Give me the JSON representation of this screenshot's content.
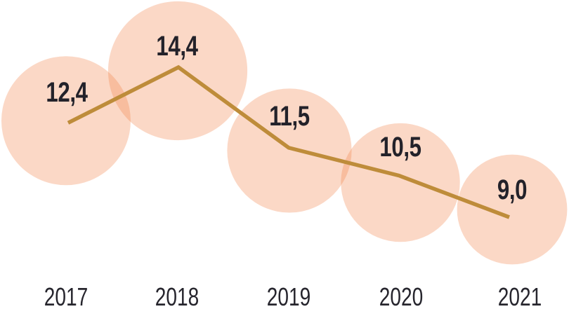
{
  "chart_data": {
    "type": "line",
    "subtype": "line-with-proportional-bubbles",
    "title": "",
    "xlabel": "",
    "ylabel": "",
    "categories": [
      "2017",
      "2018",
      "2019",
      "2020",
      "2021"
    ],
    "values": [
      12.4,
      14.4,
      11.5,
      10.5,
      9.0
    ],
    "value_labels": [
      "12,4",
      "14,4",
      "11,5",
      "10,5",
      "9,0"
    ],
    "decimal_style": "comma",
    "ylim": [
      9.0,
      14.4
    ],
    "grid": false,
    "legend_position": "none",
    "bubble_style": "circle area proportional to value, centered on data point",
    "colors": {
      "background": "#FFFFFF",
      "bubble_fill": "rgba(243,127,66,0.30)",
      "line": "#BE8C3A",
      "value_label_text": "#23222A",
      "year_label_text": "#26252D"
    }
  }
}
